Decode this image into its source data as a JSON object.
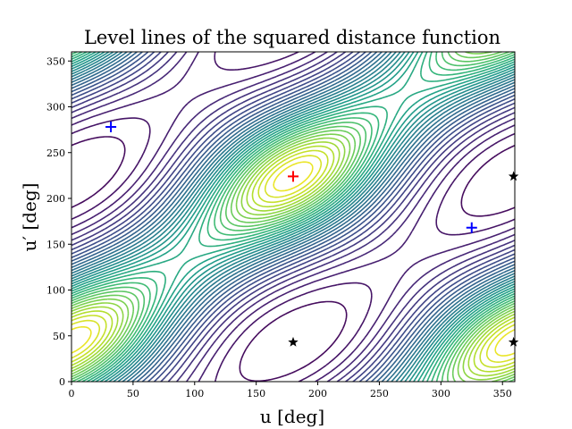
{
  "chart_data": {
    "type": "contour",
    "title": "Level lines of the squared distance function",
    "xlabel": "u [deg]",
    "ylabel": "u′ [deg]",
    "xlim": [
      0,
      360
    ],
    "ylim": [
      0,
      360
    ],
    "xticks": [
      "0",
      "50",
      "100",
      "150",
      "200",
      "250",
      "300",
      "350"
    ],
    "yticks": [
      "0",
      "50",
      "100",
      "150",
      "200",
      "250",
      "300",
      "350"
    ],
    "colormap": "viridis",
    "grid": false,
    "colors": {
      "minimum_marker": "#0000ff",
      "maximum_marker": "#ff0000",
      "saddle_marker": "#000000"
    },
    "maximum": [
      {
        "x": 180,
        "y": 224
      }
    ],
    "minima": [
      {
        "x": 32,
        "y": 278
      },
      {
        "x": 325,
        "y": 168
      }
    ],
    "saddles": [
      {
        "x": 180,
        "y": 43
      },
      {
        "x": 359,
        "y": 43
      },
      {
        "x": 359,
        "y": 224
      }
    ]
  }
}
